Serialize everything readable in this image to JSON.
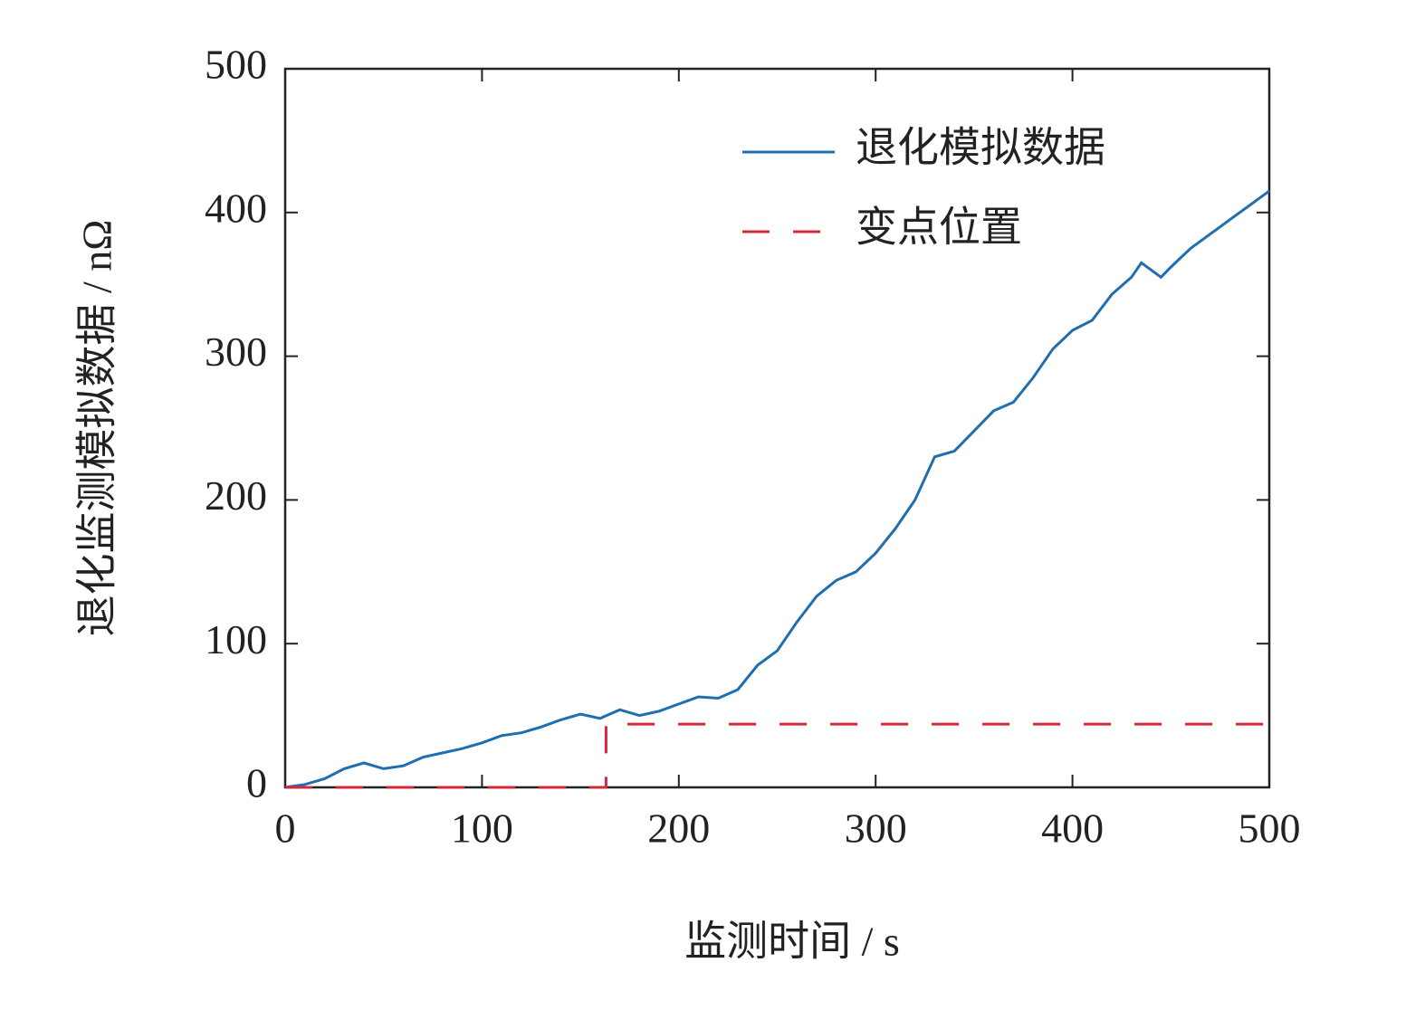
{
  "chart_data": {
    "type": "line",
    "xlabel": "监测时间 / s",
    "ylabel": "退化监测模拟数据 / nΩ",
    "xlim": [
      0,
      500
    ],
    "ylim": [
      0,
      500
    ],
    "xticks": [
      0,
      100,
      200,
      300,
      400,
      500
    ],
    "yticks": [
      0,
      100,
      200,
      300,
      400,
      500
    ],
    "legend": "upper right",
    "series": [
      {
        "name": "退化模拟数据",
        "color": "#1f6fb0",
        "style": "solid",
        "x": [
          0,
          10,
          20,
          30,
          40,
          50,
          60,
          70,
          80,
          90,
          100,
          110,
          120,
          130,
          140,
          150,
          160,
          170,
          180,
          190,
          200,
          210,
          220,
          230,
          240,
          250,
          260,
          270,
          280,
          290,
          300,
          310,
          320,
          330,
          340,
          350,
          360,
          370,
          380,
          390,
          400,
          410,
          420,
          430,
          435,
          445,
          450,
          460,
          470,
          480,
          490,
          500
        ],
        "values": [
          0,
          2,
          6,
          13,
          17,
          13,
          15,
          21,
          24,
          27,
          31,
          36,
          38,
          42,
          47,
          51,
          48,
          54,
          50,
          53,
          58,
          63,
          62,
          68,
          85,
          95,
          115,
          133,
          144,
          150,
          163,
          180,
          200,
          230,
          234,
          248,
          262,
          268,
          285,
          305,
          318,
          325,
          343,
          355,
          365,
          355,
          362,
          375,
          385,
          395,
          405,
          415
        ]
      },
      {
        "name": "变点位置",
        "color": "#d62838",
        "style": "dashed",
        "x": [
          0,
          163,
          163,
          500
        ],
        "values": [
          0,
          0,
          44,
          44
        ]
      }
    ]
  }
}
